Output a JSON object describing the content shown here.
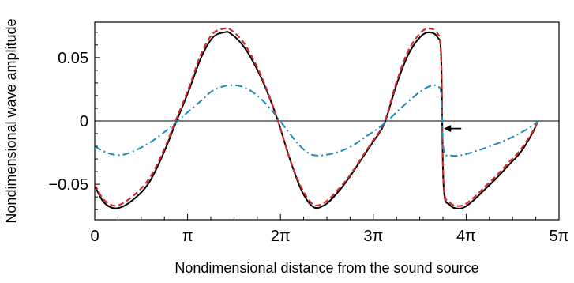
{
  "chart_data": {
    "type": "line",
    "title": "",
    "xlabel": "Nondimensional distance from the sound source",
    "ylabel": "Nondimensional wave amplitude",
    "xlim": [
      0,
      15.708
    ],
    "ylim": [
      -0.078,
      0.078
    ],
    "grid": false,
    "legend": "none",
    "zero_line": true,
    "x_ticks": [
      {
        "value": 0,
        "label": "0"
      },
      {
        "value": 3.1416,
        "label": "π"
      },
      {
        "value": 6.2832,
        "label": "2π"
      },
      {
        "value": 9.4248,
        "label": "3π"
      },
      {
        "value": 12.5664,
        "label": "4π"
      },
      {
        "value": 15.708,
        "label": "5π"
      }
    ],
    "y_ticks": [
      {
        "value": 0.05,
        "label": "0.05"
      },
      {
        "value": 0,
        "label": "0"
      },
      {
        "value": -0.05,
        "label": "−0.05"
      }
    ],
    "series": [
      {
        "style": "solid",
        "color": "#000000",
        "x": [
          0.0,
          0.3,
          0.7,
          1.2,
          1.8,
          2.3,
          2.7,
          3.2,
          3.6,
          4.0,
          4.4,
          4.6,
          5.0,
          5.4,
          5.8,
          6.2,
          6.6,
          7.0,
          7.4,
          7.8,
          8.2,
          8.6,
          9.0,
          9.4,
          9.8,
          10.2,
          10.6,
          11.0,
          11.3,
          11.6,
          11.72,
          11.8,
          12.0,
          12.4,
          12.8,
          13.2,
          13.6,
          14.0,
          14.4,
          14.8,
          15.0
        ],
        "y": [
          -0.051,
          -0.064,
          -0.069,
          -0.064,
          -0.05,
          -0.027,
          -0.004,
          0.025,
          0.05,
          0.066,
          0.07,
          0.069,
          0.06,
          0.045,
          0.025,
          0.0,
          -0.03,
          -0.055,
          -0.068,
          -0.066,
          -0.057,
          -0.045,
          -0.031,
          -0.017,
          -0.002,
          0.028,
          0.052,
          0.066,
          0.07,
          0.066,
          0.05,
          -0.05,
          -0.066,
          -0.069,
          -0.063,
          -0.054,
          -0.045,
          -0.035,
          -0.025,
          -0.01,
          0.0
        ]
      },
      {
        "style": "dashed",
        "color": "#d42a2a",
        "x": [
          0.0,
          0.3,
          0.7,
          1.2,
          1.8,
          2.3,
          2.7,
          3.2,
          3.6,
          4.0,
          4.4,
          4.6,
          5.0,
          5.4,
          5.8,
          6.2,
          6.6,
          7.0,
          7.4,
          7.8,
          8.2,
          8.6,
          9.0,
          9.4,
          9.8,
          10.2,
          10.6,
          11.0,
          11.3,
          11.6,
          11.72,
          11.8,
          12.0,
          12.4,
          12.8,
          13.2,
          13.6,
          14.0,
          14.4,
          14.8,
          15.0
        ],
        "y": [
          -0.05,
          -0.062,
          -0.067,
          -0.061,
          -0.047,
          -0.025,
          -0.002,
          0.027,
          0.053,
          0.069,
          0.073,
          0.072,
          0.063,
          0.047,
          0.026,
          0.0,
          -0.03,
          -0.053,
          -0.066,
          -0.064,
          -0.055,
          -0.044,
          -0.03,
          -0.016,
          -0.001,
          0.03,
          0.055,
          0.069,
          0.073,
          0.069,
          0.052,
          -0.048,
          -0.064,
          -0.067,
          -0.061,
          -0.052,
          -0.043,
          -0.033,
          -0.023,
          -0.009,
          0.0
        ]
      },
      {
        "style": "dashdot",
        "color": "#1f8bb8",
        "x": [
          0.0,
          0.4,
          0.8,
          1.2,
          1.8,
          2.4,
          3.0,
          3.6,
          4.0,
          4.5,
          5.0,
          5.5,
          6.0,
          6.6,
          7.0,
          7.4,
          8.0,
          8.6,
          9.2,
          9.8,
          10.4,
          11.0,
          11.4,
          11.6,
          11.72,
          11.8,
          12.0,
          12.4,
          13.0,
          13.6,
          14.2,
          14.8,
          15.0
        ],
        "y": [
          -0.02,
          -0.025,
          -0.027,
          -0.025,
          -0.018,
          -0.008,
          0.004,
          0.016,
          0.024,
          0.028,
          0.027,
          0.02,
          0.008,
          -0.01,
          -0.021,
          -0.027,
          -0.026,
          -0.021,
          -0.012,
          -0.002,
          0.011,
          0.023,
          0.028,
          0.027,
          0.021,
          -0.022,
          -0.027,
          -0.027,
          -0.023,
          -0.018,
          -0.012,
          -0.004,
          0.0
        ]
      }
    ],
    "annotations": [
      {
        "type": "arrow",
        "x": 11.76,
        "y": -0.006,
        "direction": "left"
      }
    ]
  }
}
